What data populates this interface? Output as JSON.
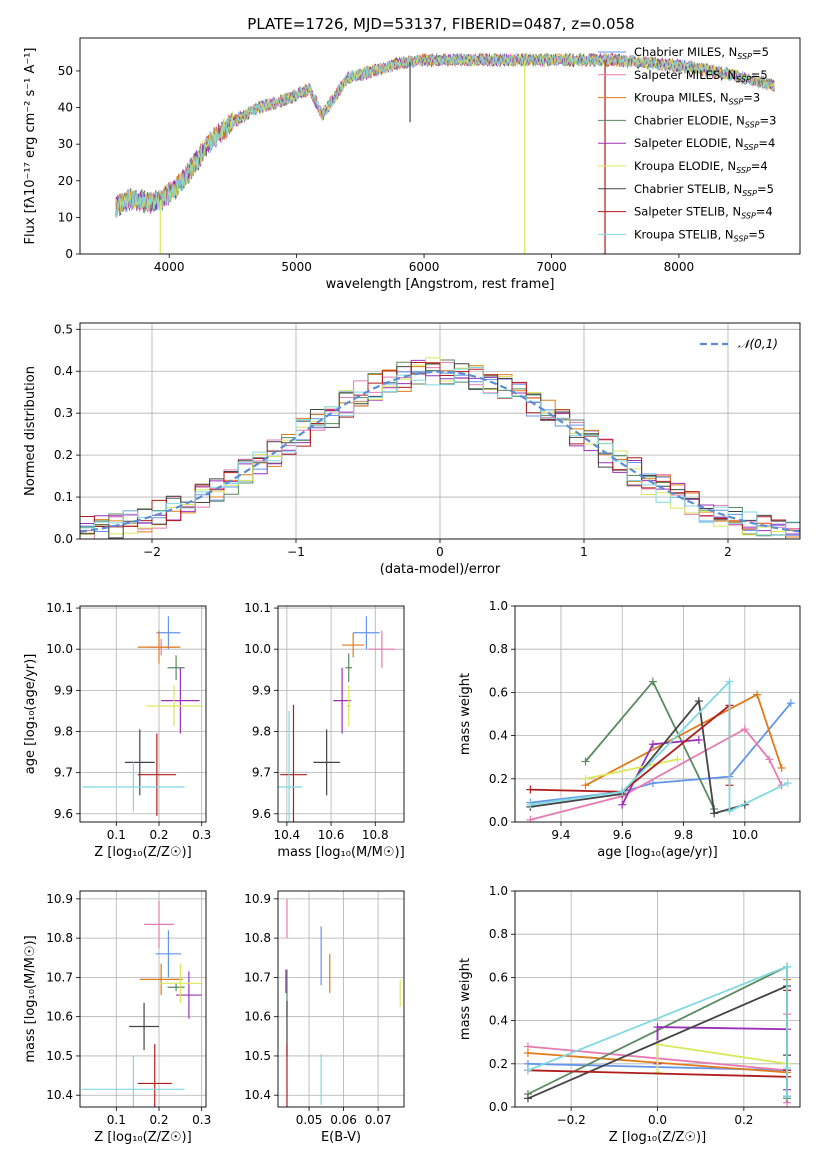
{
  "figure_title": "PLATE=1726, MJD=53137, FIBERID=0487, z=0.058",
  "colors": [
    "#6495ed",
    "#e87ab2",
    "#e07b1a",
    "#5a8a5e",
    "#9b30b8",
    "#d9e85a",
    "#444444",
    "#b01c1c",
    "#7fd9e0"
  ],
  "chart_data": [
    {
      "id": "spectrum",
      "type": "line",
      "title": "PLATE=1726, MJD=53137, FIBERID=0487, z=0.058",
      "xlabel": "wavelength [Angstrom, rest frame]",
      "ylabel": "Flux [fλ10⁻¹⁷ erg cm⁻² s⁻¹ A⁻¹]",
      "xlim": [
        3300,
        8950
      ],
      "ylim": [
        0,
        59
      ],
      "xticks": [
        "4000",
        "5000",
        "6000",
        "7000",
        "8000"
      ],
      "yticks": [
        "0",
        "10",
        "20",
        "30",
        "40",
        "50"
      ],
      "legend_position": "right",
      "legend": [
        "Chabrier MILES, N_SSP=5",
        "Salpeter MILES, N_SSP=5",
        "Kroupa MILES, N_SSP=3",
        "Chabrier ELODIE, N_SSP=3",
        "Salpeter ELODIE, N_SSP=4",
        "Kroupa ELODIE, N_SSP=4",
        "Chabrier STELIB, N_SSP=5",
        "Salpeter STELIB, N_SSP=4",
        "Kroupa STELIB, N_SSP=5"
      ],
      "continuum": {
        "x": [
          3580,
          3700,
          3850,
          3950,
          4050,
          4150,
          4300,
          4500,
          4700,
          4900,
          5100,
          5200,
          5400,
          5600,
          5800,
          6000,
          6300,
          6600,
          6900,
          7200,
          7500,
          7800,
          8100,
          8400,
          8750
        ],
        "y": [
          13,
          15,
          14,
          15,
          18,
          22,
          30,
          36,
          40,
          42,
          45,
          38,
          48,
          50,
          52,
          53,
          53,
          53,
          53,
          53,
          53,
          52,
          51,
          49,
          46
        ]
      },
      "dips": [
        {
          "x": 3930,
          "y": 0,
          "series": 5
        },
        {
          "x": 6790,
          "y": 0,
          "series": 5
        },
        {
          "x": 7420,
          "y": 0,
          "series": 7
        },
        {
          "x": 5890,
          "y": 36,
          "series": 6
        }
      ]
    },
    {
      "id": "residuals",
      "type": "step",
      "xlabel": "(data-model)/error",
      "ylabel": "Normed distribution",
      "xlim": [
        -2.5,
        2.5
      ],
      "ylim": [
        0,
        0.515
      ],
      "xticks": [
        "−2",
        "−1",
        "0",
        "1",
        "2"
      ],
      "yticks": [
        "0.0",
        "0.1",
        "0.2",
        "0.3",
        "0.4",
        "0.5"
      ],
      "bin_width": 0.1,
      "legend_position": "top-right",
      "reference_label": "𝒩(0,1)",
      "series_count": 9
    },
    {
      "id": "age-vs-Z",
      "type": "errorbar",
      "xlabel": "Z [log₁₀(Z/Z☉)]",
      "ylabel": "age  [log₁₀(age/yr)]",
      "xlim": [
        0.015,
        0.31
      ],
      "ylim": [
        9.58,
        10.105
      ],
      "xticks": [
        "0.1",
        "0.2",
        "0.3"
      ],
      "yticks": [
        "9.6",
        "9.7",
        "9.8",
        "9.9",
        "10.0",
        "10.1"
      ],
      "points": [
        {
          "x": 0.222,
          "xerr": 0.028,
          "y": 10.04,
          "yerr": 0.04
        },
        {
          "x": 0.205,
          "xerr": 0.035,
          "y": 10.005,
          "yerr": 0.02
        },
        {
          "x": 0.2,
          "xerr": 0.05,
          "y": 10.005,
          "yerr": 0.04
        },
        {
          "x": 0.24,
          "xerr": 0.02,
          "y": 9.955,
          "yerr": 0.03
        },
        {
          "x": 0.25,
          "xerr": 0.045,
          "y": 9.875,
          "yerr": 0.08
        },
        {
          "x": 0.235,
          "xerr": 0.065,
          "y": 9.862,
          "yerr": 0.05
        },
        {
          "x": 0.155,
          "xerr": 0.035,
          "y": 9.725,
          "yerr": 0.08
        },
        {
          "x": 0.195,
          "xerr": 0.045,
          "y": 9.695,
          "yerr": 0.1
        },
        {
          "x": 0.14,
          "xerr": 0.12,
          "y": 9.665,
          "yerr": 0.06
        }
      ]
    },
    {
      "id": "age-vs-mass",
      "type": "errorbar",
      "xlabel": "mass [log₁₀(M/M☉)]",
      "ylabel": "",
      "xlim": [
        10.36,
        10.93
      ],
      "ylim": [
        9.58,
        10.105
      ],
      "xticks": [
        "10.4",
        "10.6",
        "10.8"
      ],
      "yticks": [
        "9.6",
        "9.7",
        "9.8",
        "9.9",
        "10.0",
        "10.1"
      ],
      "points": [
        {
          "x": 10.76,
          "xerr": 0.06,
          "y": 10.04,
          "yerr": 0.04
        },
        {
          "x": 10.83,
          "xerr": 0.06,
          "y": 10.0,
          "yerr": 0.045
        },
        {
          "x": 10.7,
          "xerr": 0.05,
          "y": 10.01,
          "yerr": 0.03
        },
        {
          "x": 10.68,
          "xerr": 0.015,
          "y": 9.955,
          "yerr": 0.035
        },
        {
          "x": 10.65,
          "xerr": 0.04,
          "y": 9.875,
          "yerr": 0.08
        },
        {
          "x": 10.68,
          "xerr": 0.01,
          "y": 9.862,
          "yerr": 0.05
        },
        {
          "x": 10.58,
          "xerr": 0.06,
          "y": 9.725,
          "yerr": 0.08
        },
        {
          "x": 10.43,
          "xerr": 0.06,
          "y": 9.695,
          "yerr": 0.17
        },
        {
          "x": 10.41,
          "xerr": 0.06,
          "y": 9.665,
          "yerr": 0.185
        }
      ]
    },
    {
      "id": "mass-weight-vs-age",
      "type": "line",
      "xlabel": "age  [log₁₀(age/yr)]",
      "ylabel": "mass weight",
      "xlim": [
        9.25,
        10.18
      ],
      "ylim": [
        0,
        1
      ],
      "xticks": [
        "9.4",
        "9.6",
        "9.8",
        "10.0"
      ],
      "yticks": [
        "0.0",
        "0.2",
        "0.4",
        "0.6",
        "0.8",
        "1.0"
      ],
      "series": [
        {
          "x": [
            9.3,
            9.6,
            9.7,
            9.95,
            10.15
          ],
          "y": [
            0.09,
            0.14,
            0.18,
            0.21,
            0.55
          ]
        },
        {
          "x": [
            9.3,
            9.6,
            10.0,
            10.08,
            10.12
          ],
          "y": [
            0.01,
            0.12,
            0.43,
            0.29,
            0.17
          ]
        },
        {
          "x": [
            9.48,
            10.04,
            10.12
          ],
          "y": [
            0.17,
            0.59,
            0.25
          ]
        },
        {
          "x": [
            9.48,
            9.7,
            9.9
          ],
          "y": [
            0.28,
            0.65,
            0.06
          ]
        },
        {
          "x": [
            9.6,
            9.7,
            9.85
          ],
          "y": [
            0.08,
            0.36,
            0.38
          ]
        },
        {
          "x": [
            9.48,
            9.78
          ],
          "y": [
            0.2,
            0.29
          ]
        },
        {
          "x": [
            9.3,
            9.6,
            9.85,
            9.9,
            10.0
          ],
          "y": [
            0.07,
            0.13,
            0.56,
            0.04,
            0.08
          ]
        },
        {
          "x": [
            9.3,
            9.6,
            9.95,
            9.95
          ],
          "y": [
            0.15,
            0.14,
            0.54,
            0.17
          ]
        },
        {
          "x": [
            9.3,
            9.6,
            9.95,
            9.95,
            10.14
          ],
          "y": [
            0.08,
            0.14,
            0.65,
            0.05,
            0.18
          ]
        }
      ]
    },
    {
      "id": "mass-vs-Z",
      "type": "errorbar",
      "xlabel": "Z [log₁₀(Z/Z☉)]",
      "ylabel": "mass [log₁₀(M/M☉)]",
      "xlim": [
        0.015,
        0.31
      ],
      "ylim": [
        10.37,
        10.92
      ],
      "xticks": [
        "0.1",
        "0.2",
        "0.3"
      ],
      "yticks": [
        "10.4",
        "10.5",
        "10.6",
        "10.7",
        "10.8",
        "10.9"
      ],
      "points": [
        {
          "x": 0.222,
          "xerr": 0.03,
          "y": 10.76,
          "yerr": 0.06
        },
        {
          "x": 0.2,
          "xerr": 0.035,
          "y": 10.835,
          "yerr": 0.06
        },
        {
          "x": 0.205,
          "xerr": 0.05,
          "y": 10.695,
          "yerr": 0.04
        },
        {
          "x": 0.24,
          "xerr": 0.02,
          "y": 10.675,
          "yerr": 0.01
        },
        {
          "x": 0.27,
          "xerr": 0.03,
          "y": 10.655,
          "yerr": 0.06
        },
        {
          "x": 0.25,
          "xerr": 0.05,
          "y": 10.685,
          "yerr": 0.05
        },
        {
          "x": 0.165,
          "xerr": 0.035,
          "y": 10.575,
          "yerr": 0.06
        },
        {
          "x": 0.19,
          "xerr": 0.04,
          "y": 10.43,
          "yerr": 0.1
        },
        {
          "x": 0.14,
          "xerr": 0.12,
          "y": 10.415,
          "yerr": 0.085
        }
      ]
    },
    {
      "id": "mass-vs-EBV",
      "type": "errorbar",
      "xlabel": "E(B-V)",
      "ylabel": "",
      "xlim": [
        0.041,
        0.0775
      ],
      "ylim": [
        10.37,
        10.92
      ],
      "xticks": [
        "0.05",
        "0.06",
        "0.07"
      ],
      "yticks": [
        "10.4",
        "10.5",
        "10.6",
        "10.7",
        "10.8",
        "10.9"
      ],
      "points": [
        {
          "x": 0.0535,
          "y": 10.755,
          "yerr": 0.075
        },
        {
          "x": 0.0436,
          "y": 10.85,
          "yerr": 0.05
        },
        {
          "x": 0.056,
          "y": 10.71,
          "yerr": 0.05
        },
        {
          "x": 0.0436,
          "y": 10.66,
          "yerr": 0.06
        },
        {
          "x": 0.0433,
          "y": 10.69,
          "yerr": 0.03
        },
        {
          "x": 0.0764,
          "y": 10.66,
          "yerr": 0.035
        },
        {
          "x": 0.0436,
          "y": 10.57,
          "yerr": 0.07
        },
        {
          "x": 0.0436,
          "y": 10.43,
          "yerr": 0.1
        },
        {
          "x": 0.0535,
          "y": 10.44,
          "yerr": 0.065
        }
      ]
    },
    {
      "id": "mass-weight-vs-Z",
      "type": "line",
      "xlabel": "Z [log₁₀(Z/Z☉)]",
      "ylabel": "mass weight",
      "xlim": [
        -0.33,
        0.33
      ],
      "ylim": [
        0,
        1
      ],
      "xticks": [
        "−0.2",
        "0.0",
        "0.2"
      ],
      "yticks": [
        "0.0",
        "0.2",
        "0.4",
        "0.6",
        "0.8",
        "1.0"
      ],
      "series": [
        {
          "x": [
            -0.3,
            0.3,
            0.3
          ],
          "y": [
            0.2,
            0.17,
            0.65
          ]
        },
        {
          "x": [
            -0.3,
            0.3,
            0.3,
            0.3
          ],
          "y": [
            0.28,
            0.17,
            0.43,
            0.02
          ]
        },
        {
          "x": [
            -0.3,
            0.3,
            0.3
          ],
          "y": [
            0.25,
            0.16,
            0.59
          ]
        },
        {
          "x": [
            -0.3,
            0.3,
            0.3
          ],
          "y": [
            0.06,
            0.65,
            0.04
          ]
        },
        {
          "x": [
            0.0,
            0.0,
            0.3,
            0.3
          ],
          "y": [
            0.2,
            0.37,
            0.36,
            0.08
          ]
        },
        {
          "x": [
            0.0,
            0.0,
            0.3
          ],
          "y": [
            0.16,
            0.29,
            0.2
          ]
        },
        {
          "x": [
            -0.3,
            0.3,
            0.3,
            0.3
          ],
          "y": [
            0.04,
            0.56,
            0.24,
            0.05
          ]
        },
        {
          "x": [
            -0.3,
            0.3,
            0.3,
            0.3
          ],
          "y": [
            0.17,
            0.14,
            0.54,
            0.17
          ]
        },
        {
          "x": [
            -0.3,
            0.3,
            0.3,
            0.3
          ],
          "y": [
            0.17,
            0.65,
            0.18,
            0.05
          ]
        }
      ]
    }
  ]
}
